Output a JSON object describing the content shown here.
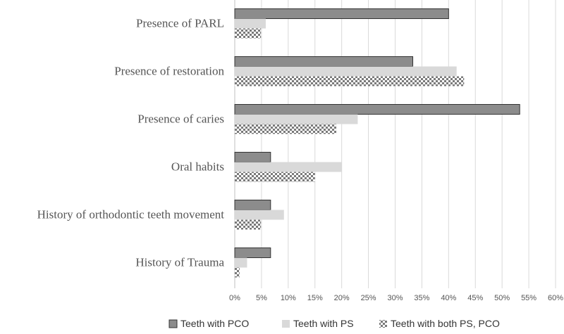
{
  "chart_data": {
    "type": "bar",
    "orientation": "horizontal",
    "title": "",
    "xlabel": "",
    "ylabel": "",
    "categories": [
      "Presence of PARL",
      "Presence of restoration",
      "Presence of caries",
      "Oral habits",
      "History of orthodontic teeth movement",
      "History of Trauma"
    ],
    "series": [
      {
        "name": "Teeth with PCO",
        "style": "dark",
        "color": "#8c8c8c",
        "values": [
          40,
          33.3,
          53.3,
          6.7,
          6.7,
          6.7
        ]
      },
      {
        "name": "Teeth with PS",
        "style": "light",
        "color": "#d9d9d9",
        "values": [
          5.8,
          41.5,
          23.0,
          20.0,
          9.2,
          2.3
        ]
      },
      {
        "name": "Teeth with both PS, PCO",
        "style": "checker",
        "color": "#888888",
        "values": [
          4.9,
          42.9,
          19.0,
          15.0,
          4.9,
          0.9
        ]
      }
    ],
    "xlim": [
      0,
      60
    ],
    "xticks": [
      "0%",
      "5%",
      "10%",
      "15%",
      "20%",
      "25%",
      "30%",
      "35%",
      "40%",
      "45%",
      "50%",
      "55%",
      "60%"
    ],
    "grid": true,
    "legend_position": "bottom"
  }
}
